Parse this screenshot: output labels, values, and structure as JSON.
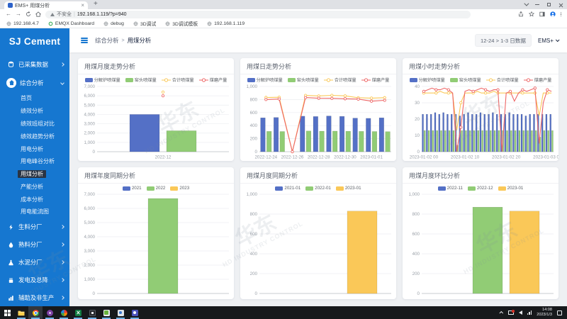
{
  "browser": {
    "tab_title": "EMS+ 用煤分析",
    "tab_close": "×",
    "new_tab": "+",
    "security_label": "不安全",
    "url": "192.168.1.119/?p=940",
    "bookmarks": [
      {
        "name": "ip-192-168-4-7",
        "icon": "globe-icon",
        "label": "192.168.4.7"
      },
      {
        "name": "emqx-dashboard",
        "icon": "emqx-icon",
        "label": "EMQX Dashboard"
      },
      {
        "name": "debug",
        "icon": "globe-icon",
        "label": "debug"
      },
      {
        "name": "3d-debug",
        "icon": "globe-icon",
        "label": "3D调试"
      },
      {
        "name": "3d-debug-template",
        "icon": "globe-icon",
        "label": "3D调试模板"
      },
      {
        "name": "ip-192-168-1-119",
        "icon": "globe-icon",
        "label": "192.168.1.119"
      }
    ]
  },
  "sidebar": {
    "brand": "SJ Cement",
    "items": [
      {
        "type": "group",
        "name": "collected-data",
        "icon": "database-icon",
        "label": "已采集数据",
        "arrow": "right",
        "active": false
      },
      {
        "type": "group",
        "name": "comprehensive-analysis",
        "icon": "home-icon",
        "label": "综合分析",
        "arrow": "down",
        "active": true
      },
      {
        "type": "sub",
        "name": "home",
        "label": "首页",
        "active": false
      },
      {
        "type": "sub",
        "name": "performance-analysis",
        "label": "绩效分析",
        "active": false
      },
      {
        "type": "sub",
        "name": "performance-team-compare",
        "label": "绩效班组对比",
        "active": false
      },
      {
        "type": "sub",
        "name": "performance-trend",
        "label": "绩效趋势分析",
        "active": false
      },
      {
        "type": "sub",
        "name": "power-analysis",
        "label": "用电分析",
        "active": false
      },
      {
        "type": "sub",
        "name": "power-peak-valley",
        "label": "用电峰谷分析",
        "active": false
      },
      {
        "type": "sub",
        "name": "coal-analysis",
        "label": "用煤分析",
        "active": true
      },
      {
        "type": "sub",
        "name": "capacity-analysis",
        "label": "产能分析",
        "active": false
      },
      {
        "type": "sub",
        "name": "cost-analysis",
        "label": "成本分析",
        "active": false
      },
      {
        "type": "sub",
        "name": "energy-flow-diagram",
        "label": "用电能流图",
        "active": false
      },
      {
        "type": "group",
        "name": "raw-material-plant",
        "icon": "bolt-icon",
        "label": "生料分厂",
        "arrow": "right",
        "active": false
      },
      {
        "type": "group",
        "name": "clinker-plant",
        "icon": "drop-icon",
        "label": "熟料分厂",
        "arrow": "right",
        "active": false
      },
      {
        "type": "group",
        "name": "cement-plant",
        "icon": "flask-icon",
        "label": "水泥分厂",
        "arrow": "right",
        "active": false
      },
      {
        "type": "group",
        "name": "power-generation",
        "icon": "power-icon",
        "label": "发电及总降",
        "arrow": "right",
        "active": false
      },
      {
        "type": "group",
        "name": "auxiliary-nonproduction",
        "icon": "tools-icon",
        "label": "辅助及非生产",
        "arrow": "right",
        "active": false
      },
      {
        "type": "group",
        "name": "report-summary",
        "icon": "report-icon",
        "label": "报表汇总",
        "arrow": "right",
        "active": false
      }
    ]
  },
  "header": {
    "breadcrumb": [
      "综合分析",
      "用煤分析"
    ],
    "separator": ">",
    "date_range_button": "12-24 > 1-3 日数据",
    "profile_label": "EMS+"
  },
  "watermark": {
    "line1": "华东",
    "line2": "HD INDUSTRY CONTROL"
  },
  "taskbar": {
    "icons": [
      {
        "name": "start",
        "open": false,
        "active": false
      },
      {
        "name": "explorer",
        "open": true,
        "active": false
      },
      {
        "name": "chrome",
        "open": true,
        "active": true
      },
      {
        "name": "app-purple",
        "open": true,
        "active": false
      },
      {
        "name": "app-pinwheel",
        "open": true,
        "active": false
      },
      {
        "name": "excel",
        "open": true,
        "active": false
      },
      {
        "name": "media-app",
        "open": true,
        "active": false
      },
      {
        "name": "editor-app",
        "open": true,
        "active": false
      },
      {
        "name": "app-light",
        "open": true,
        "active": false
      },
      {
        "name": "teams-app",
        "open": true,
        "active": false
      }
    ],
    "tray": {
      "time": "14:08",
      "date": "2023/1/3"
    }
  },
  "chart_data": [
    {
      "name": "coal-monthly-trend",
      "type": "bar-line",
      "title": "用煤月度走势分析",
      "categories": [
        "2022-12"
      ],
      "series": [
        {
          "name": "分解炉喷煤量",
          "type": "bar",
          "color": "#5470c6",
          "values": [
            4000
          ]
        },
        {
          "name": "窑头喷煤量",
          "type": "bar",
          "color": "#91cc75",
          "values": [
            2250
          ]
        },
        {
          "name": "合计喷煤量",
          "type": "line",
          "color": "#fac858",
          "values": [
            6400
          ]
        },
        {
          "name": "煤磨产量",
          "type": "line",
          "color": "#ee6666",
          "values": [
            6000
          ]
        }
      ],
      "ylim": [
        0,
        7000
      ],
      "ytick_step": 1000,
      "grid": true,
      "legend_position": "top",
      "xticks": [
        {
          "i": 0,
          "label": "2022-12"
        }
      ]
    },
    {
      "name": "coal-daily-trend",
      "type": "bar-line",
      "title": "用煤日走势分析",
      "categories": [
        "2022-12-24",
        "2022-12-25",
        "2022-12-26",
        "2022-12-27",
        "2022-12-28",
        "2022-12-29",
        "2022-12-30",
        "2022-12-31",
        "2023-01-01",
        "2023-01-02"
      ],
      "series": [
        {
          "name": "分解炉喷煤量",
          "type": "bar",
          "color": "#5470c6",
          "values": [
            520,
            525,
            0,
            545,
            540,
            548,
            542,
            515,
            512,
            520
          ]
        },
        {
          "name": "窑头喷煤量",
          "type": "bar",
          "color": "#91cc75",
          "values": [
            312,
            310,
            0,
            318,
            315,
            316,
            314,
            312,
            310,
            308
          ]
        },
        {
          "name": "合计喷煤量",
          "type": "line",
          "color": "#fac858",
          "values": [
            832,
            835,
            0,
            863,
            855,
            864,
            856,
            827,
            822,
            828
          ]
        },
        {
          "name": "煤磨产量",
          "type": "line",
          "color": "#ee6666",
          "values": [
            800,
            808,
            0,
            830,
            820,
            818,
            812,
            806,
            775,
            788
          ]
        }
      ],
      "ylim": [
        0,
        1000
      ],
      "ytick_step": 200,
      "grid": true,
      "legend_position": "top",
      "xticks": [
        {
          "i": 0,
          "label": "2022-12-24"
        },
        {
          "i": 2,
          "label": "2022-12-26"
        },
        {
          "i": 4,
          "label": "2022-12-28"
        },
        {
          "i": 6,
          "label": "2022-12-30"
        },
        {
          "i": 8,
          "label": "2023-01-01"
        }
      ]
    },
    {
      "name": "coal-hourly-trend",
      "type": "bar-line",
      "title": "用煤小时走势分析",
      "categories": [
        "2023-01-02 00",
        "2023-01-02 01",
        "2023-01-02 02",
        "2023-01-02 03",
        "2023-01-02 04",
        "2023-01-02 05",
        "2023-01-02 06",
        "2023-01-02 07",
        "2023-01-02 08",
        "2023-01-02 09",
        "2023-01-02 10",
        "2023-01-02 11",
        "2023-01-02 12",
        "2023-01-02 13",
        "2023-01-02 14",
        "2023-01-02 15",
        "2023-01-02 16",
        "2023-01-02 17",
        "2023-01-02 18",
        "2023-01-02 19",
        "2023-01-02 20",
        "2023-01-02 21",
        "2023-01-02 22",
        "2023-01-02 23",
        "2023-01-03 00",
        "2023-01-03 01",
        "2023-01-03 02",
        "2023-01-03 03",
        "2023-01-03 04",
        "2023-01-03 05",
        "2023-01-03 06",
        "2023-01-03 07"
      ],
      "series": [
        {
          "name": "分解炉喷煤量",
          "type": "bar",
          "color": "#5470c6",
          "values": [
            23,
            23,
            23,
            24,
            23,
            24,
            23,
            23,
            23,
            22,
            23,
            24,
            23,
            23,
            24,
            23,
            23,
            24,
            23,
            23,
            23,
            24,
            23,
            23,
            23,
            22,
            23,
            23,
            23,
            23,
            23,
            23
          ]
        },
        {
          "name": "窑头喷煤量",
          "type": "bar",
          "color": "#91cc75",
          "values": [
            13,
            13,
            13,
            13,
            13,
            13,
            13,
            13,
            4,
            13,
            13,
            13,
            13,
            13,
            13,
            13,
            13,
            13,
            13,
            13,
            13,
            13,
            13,
            13,
            13,
            13,
            13,
            13,
            9,
            13,
            13,
            13
          ]
        },
        {
          "name": "合计喷煤量",
          "type": "line",
          "color": "#fac858",
          "values": [
            36,
            36,
            36,
            36,
            37,
            36,
            36,
            36,
            13,
            30,
            36,
            36,
            36,
            37,
            36,
            36,
            36,
            37,
            36,
            36,
            36,
            36,
            36,
            36,
            36,
            36,
            36,
            36,
            22,
            36,
            36,
            36
          ]
        },
        {
          "name": "煤磨产量",
          "type": "line",
          "color": "#ee6666",
          "values": [
            37,
            38,
            39,
            38,
            38,
            39,
            38,
            36,
            0,
            15,
            37,
            38,
            37,
            38,
            39,
            38,
            37,
            38,
            38,
            0,
            36,
            37,
            31,
            36,
            38,
            37,
            38,
            39,
            5,
            30,
            38,
            37
          ]
        }
      ],
      "ylim": [
        0,
        40
      ],
      "ytick_step": 10,
      "grid": true,
      "legend_position": "top",
      "xticks": [
        {
          "i": 0,
          "label": "2023-01-02 00"
        },
        {
          "i": 10,
          "label": "2023-01-02 10"
        },
        {
          "i": 20,
          "label": "2023-01-02 20"
        },
        {
          "i": 30,
          "label": "2023-01-03 06"
        }
      ]
    },
    {
      "name": "coal-yearly-same-period",
      "type": "bar",
      "title": "用煤年度同期分析",
      "categories": [
        ""
      ],
      "series": [
        {
          "name": "2021",
          "type": "bar",
          "color": "#5470c6",
          "values": [
            0
          ]
        },
        {
          "name": "2022",
          "type": "bar",
          "color": "#91cc75",
          "values": [
            6700
          ]
        },
        {
          "name": "2023",
          "type": "bar",
          "color": "#fac858",
          "values": [
            0
          ]
        }
      ],
      "ylim": [
        0,
        7000
      ],
      "ytick_step": 1000,
      "grid": true,
      "legend_position": "top",
      "xticks": []
    },
    {
      "name": "coal-monthly-same-period",
      "type": "bar",
      "title": "用煤月度同期分析",
      "categories": [
        ""
      ],
      "series": [
        {
          "name": "2021-01",
          "type": "bar",
          "color": "#5470c6",
          "values": [
            0
          ]
        },
        {
          "name": "2022-01",
          "type": "bar",
          "color": "#91cc75",
          "values": [
            0
          ]
        },
        {
          "name": "2023-01",
          "type": "bar",
          "color": "#fac858",
          "values": [
            830
          ]
        }
      ],
      "ylim": [
        0,
        1000
      ],
      "ytick_step": 200,
      "grid": true,
      "legend_position": "top",
      "xticks": []
    },
    {
      "name": "coal-month-over-month",
      "type": "bar",
      "title": "用煤月度环比分析",
      "categories": [
        ""
      ],
      "series": [
        {
          "name": "2022-11",
          "type": "bar",
          "color": "#5470c6",
          "values": [
            0
          ]
        },
        {
          "name": "2022-12",
          "type": "bar",
          "color": "#91cc75",
          "values": [
            870
          ]
        },
        {
          "name": "2023-01",
          "type": "bar",
          "color": "#fac858",
          "values": [
            830
          ]
        }
      ],
      "ylim": [
        0,
        1000
      ],
      "ytick_step": 200,
      "grid": true,
      "legend_position": "top",
      "xticks": []
    }
  ]
}
